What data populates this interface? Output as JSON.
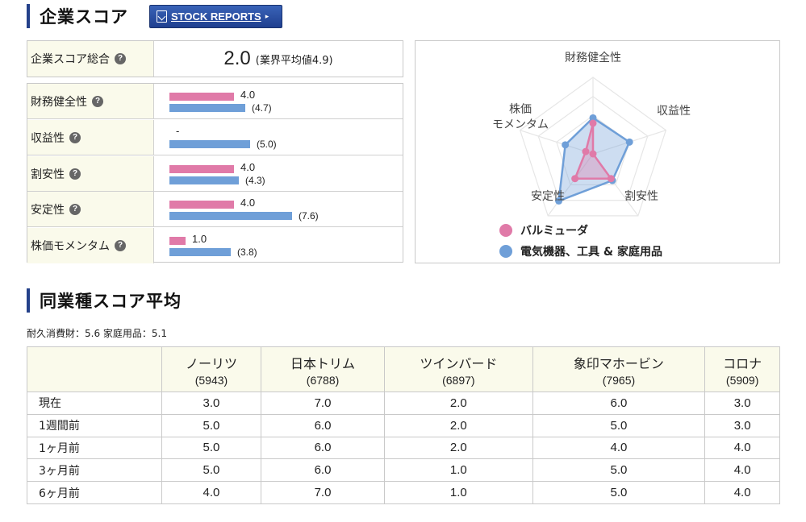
{
  "header": {
    "title": "企業スコア",
    "stock_reports": "STOCK REPORTS",
    "arrow": "▸"
  },
  "total": {
    "label": "企業スコア総合",
    "value": "2.0",
    "industry_avg": "(業界平均値4.9)"
  },
  "metrics": [
    {
      "label": "財務健全性",
      "company": "4.0",
      "industry": "(4.7)",
      "company_value": 4.0,
      "industry_value": 4.7
    },
    {
      "label": "収益性",
      "company": "-",
      "industry": "(5.0)",
      "company_value": null,
      "industry_value": 5.0
    },
    {
      "label": "割安性",
      "company": "4.0",
      "industry": "(4.3)",
      "company_value": 4.0,
      "industry_value": 4.3
    },
    {
      "label": "安定性",
      "company": "4.0",
      "industry": "(7.6)",
      "company_value": 4.0,
      "industry_value": 7.6
    },
    {
      "label": "株価モメンタム",
      "company": "1.0",
      "industry": "(3.8)",
      "company_value": 1.0,
      "industry_value": 3.8
    }
  ],
  "colors": {
    "company": "#e07aa8",
    "industry": "#6f9fd8"
  },
  "radar": {
    "axes": [
      "財務健全性",
      "収益性",
      "割安性",
      "安定性",
      "株価モメンタム"
    ],
    "axis_label_lines": {
      "momentum_line1": "株価",
      "momentum_line2": "モメンタム"
    },
    "max": 10,
    "company_values": [
      4.0,
      0,
      4.0,
      4.0,
      1.0
    ],
    "industry_values": [
      4.7,
      5.0,
      4.3,
      7.6,
      3.8
    ]
  },
  "legend": {
    "company": "バルミューダ",
    "industry": "電気機器、工具 & 家庭用品"
  },
  "peer": {
    "title": "同業種スコア平均",
    "subtitle": "耐久消費財：5.6 家庭用品：5.1",
    "companies": [
      {
        "name": "ノーリツ",
        "code": "(5943)"
      },
      {
        "name": "日本トリム",
        "code": "(6788)"
      },
      {
        "name": "ツインバード",
        "code": "(6897)"
      },
      {
        "name": "象印マホービン",
        "code": "(7965)"
      },
      {
        "name": "コロナ",
        "code": "(5909)"
      }
    ],
    "rows": [
      {
        "label": "現在",
        "values": [
          "3.0",
          "7.0",
          "2.0",
          "6.0",
          "3.0"
        ]
      },
      {
        "label": "1週間前",
        "values": [
          "5.0",
          "6.0",
          "2.0",
          "5.0",
          "3.0"
        ]
      },
      {
        "label": "1ヶ月前",
        "values": [
          "5.0",
          "6.0",
          "2.0",
          "4.0",
          "4.0"
        ]
      },
      {
        "label": "3ヶ月前",
        "values": [
          "5.0",
          "6.0",
          "1.0",
          "5.0",
          "4.0"
        ]
      },
      {
        "label": "6ヶ月前",
        "values": [
          "4.0",
          "7.0",
          "1.0",
          "5.0",
          "4.0"
        ]
      }
    ]
  }
}
